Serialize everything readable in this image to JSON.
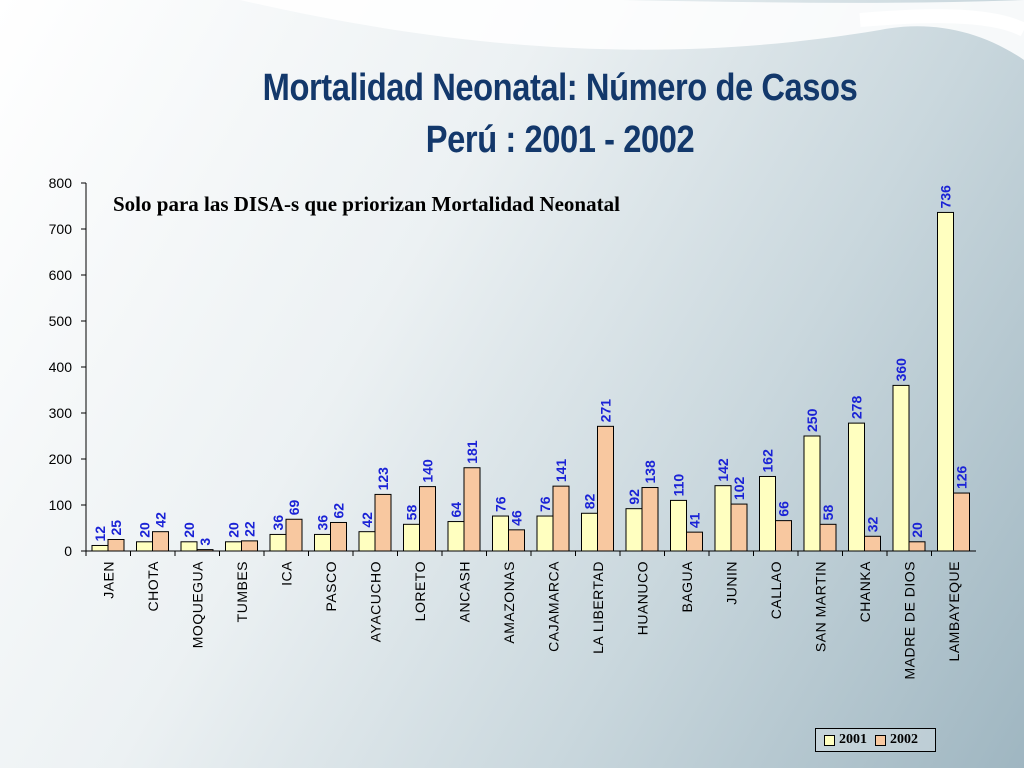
{
  "title": "Mortalidad Neonatal: Número de Casos",
  "title_line2": "Perú : 2001 - 2002",
  "subtitle": "Solo para las DISA-s que priorizan Mortalidad Neonatal",
  "colors": {
    "series_2001": "#ffffc0",
    "series_2002": "#f8c8a0",
    "title": "#13386b",
    "value_label": "#1a22d6"
  },
  "chart_data": {
    "type": "bar",
    "title": "Mortalidad Neonatal: Número de Casos",
    "subtitle": "Perú : 2001 - 2002",
    "xlabel": "",
    "ylabel": "",
    "ylim": [
      0,
      800
    ],
    "yticks": [
      0,
      100,
      200,
      300,
      400,
      500,
      600,
      700,
      800
    ],
    "grid": false,
    "legend_position": "bottom-right",
    "categories": [
      "JAEN",
      "CHOTA",
      "MOQUEGUA",
      "TUMBES",
      "ICA",
      "PASCO",
      "AYACUCHO",
      "LORETO",
      "ANCASH",
      "AMAZONAS",
      "CAJAMARCA",
      "LA LIBERTAD",
      "HUANUCO",
      "BAGUA",
      "JUNIN",
      "CALLAO",
      "SAN MARTIN",
      "CHANKA",
      "MADRE DE DIOS",
      "LAMBAYEQUE"
    ],
    "series": [
      {
        "name": "2001",
        "values": [
          12,
          20,
          20,
          20,
          36,
          36,
          42,
          58,
          64,
          76,
          76,
          82,
          92,
          110,
          142,
          162,
          250,
          278,
          360,
          736
        ]
      },
      {
        "name": "2002",
        "values": [
          25,
          42,
          3,
          22,
          69,
          62,
          123,
          140,
          181,
          46,
          141,
          271,
          138,
          41,
          102,
          66,
          58,
          32,
          20,
          126
        ]
      }
    ]
  }
}
